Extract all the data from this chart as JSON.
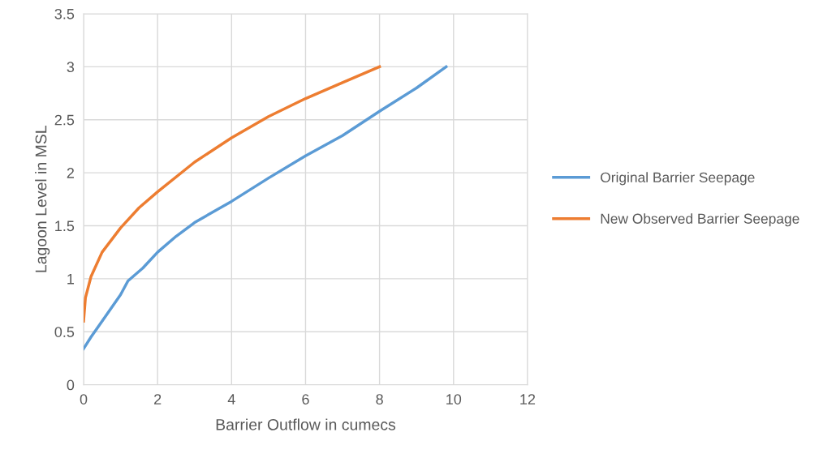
{
  "chart_data": {
    "type": "line",
    "xlabel": "Barrier Outflow in cumecs",
    "ylabel": "Lagoon Level in MSL",
    "xlim": [
      0,
      12
    ],
    "xticks": [
      0,
      2,
      4,
      6,
      8,
      10,
      12
    ],
    "ylim": [
      0,
      3.5
    ],
    "yticks": [
      0,
      0.5,
      1,
      1.5,
      2,
      2.5,
      3,
      3.5
    ],
    "grid": true,
    "legend": "right",
    "marker": "none",
    "line_style": "solid",
    "series": [
      {
        "name": "Original Barrier Seepage",
        "color": "#5b9bd5",
        "x": [
          0,
          0.2,
          0.5,
          1,
          1.2,
          1.6,
          2,
          2.5,
          3,
          4,
          5,
          6,
          7,
          8,
          9,
          9.8
        ],
        "values": [
          0.34,
          0.45,
          0.6,
          0.85,
          0.98,
          1.1,
          1.25,
          1.4,
          1.53,
          1.73,
          1.95,
          2.16,
          2.35,
          2.58,
          2.8,
          3.0
        ]
      },
      {
        "name": "New Observed Barrier Seepage",
        "color": "#ed7d31",
        "x": [
          0,
          0.05,
          0.2,
          0.5,
          1,
          1.5,
          2,
          3,
          4,
          5,
          6,
          7,
          8
        ],
        "values": [
          0.6,
          0.82,
          1.02,
          1.25,
          1.48,
          1.67,
          1.82,
          2.1,
          2.33,
          2.53,
          2.7,
          2.85,
          3.0
        ]
      }
    ]
  }
}
